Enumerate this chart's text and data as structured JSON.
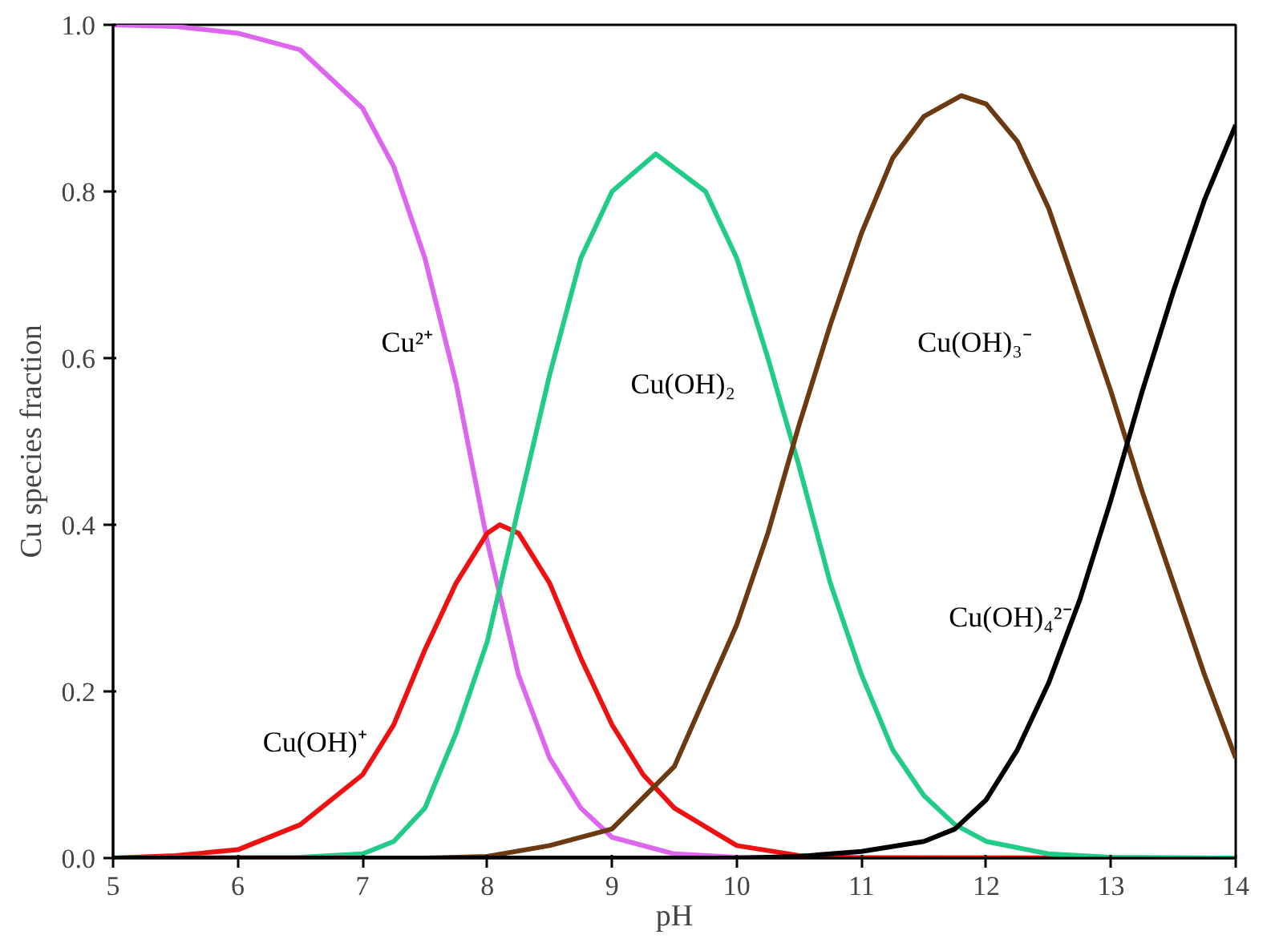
{
  "chart_data": {
    "type": "line",
    "xlabel": "pH",
    "ylabel": "Cu species fraction",
    "xlim": [
      5,
      14
    ],
    "ylim": [
      0,
      1.0
    ],
    "xticks": [
      5,
      6,
      7,
      8,
      9,
      10,
      11,
      12,
      13,
      14
    ],
    "yticks": [
      {
        "value": 0,
        "label": "0.0"
      },
      0.2,
      0.4,
      0.6,
      0.8,
      {
        "value": 1,
        "label": "1.0"
      }
    ],
    "grid": false,
    "legend": false,
    "line_style": "solid",
    "marker": "none",
    "series": [
      {
        "name": "Cu²⁺",
        "color": "#dd66ee",
        "x": [
          5,
          5.5,
          6,
          6.5,
          7,
          7.25,
          7.5,
          7.75,
          8,
          8.25,
          8.5,
          8.75,
          9,
          9.5,
          10,
          14
        ],
        "values": [
          1.0,
          0.998,
          0.99,
          0.97,
          0.9,
          0.83,
          0.72,
          0.57,
          0.38,
          0.22,
          0.12,
          0.06,
          0.025,
          0.005,
          0.001,
          0
        ]
      },
      {
        "name": "Cu(OH)⁺",
        "color": "#ee1111",
        "x": [
          5,
          5.5,
          6,
          6.5,
          7,
          7.25,
          7.5,
          7.75,
          8,
          8.1,
          8.25,
          8.5,
          8.75,
          9,
          9.25,
          9.5,
          10,
          10.5,
          11,
          14
        ],
        "values": [
          0,
          0.003,
          0.01,
          0.04,
          0.1,
          0.16,
          0.25,
          0.33,
          0.39,
          0.4,
          0.39,
          0.33,
          0.24,
          0.16,
          0.1,
          0.06,
          0.015,
          0.003,
          0,
          0
        ]
      },
      {
        "name": "Cu(OH)₂",
        "color": "#22cc88",
        "x": [
          5,
          6.5,
          7,
          7.25,
          7.5,
          7.75,
          8,
          8.25,
          8.5,
          8.75,
          9,
          9.35,
          9.75,
          10,
          10.25,
          10.5,
          10.75,
          11,
          11.25,
          11.5,
          11.75,
          12,
          12.5,
          13,
          14
        ],
        "values": [
          0,
          0.001,
          0.005,
          0.02,
          0.06,
          0.15,
          0.26,
          0.42,
          0.58,
          0.72,
          0.8,
          0.845,
          0.8,
          0.72,
          0.6,
          0.47,
          0.33,
          0.22,
          0.13,
          0.075,
          0.04,
          0.02,
          0.005,
          0.001,
          0
        ]
      },
      {
        "name": "Cu(OH)₃⁻",
        "color": "#6b3a10",
        "x": [
          5,
          7.5,
          8,
          8.5,
          9,
          9.5,
          10,
          10.25,
          10.5,
          10.75,
          11,
          11.25,
          11.5,
          11.8,
          12,
          12.25,
          12.5,
          12.75,
          13,
          13.25,
          13.5,
          13.75,
          14
        ],
        "values": [
          0,
          0,
          0.002,
          0.015,
          0.035,
          0.11,
          0.28,
          0.39,
          0.52,
          0.64,
          0.75,
          0.84,
          0.89,
          0.915,
          0.905,
          0.86,
          0.78,
          0.67,
          0.56,
          0.44,
          0.33,
          0.22,
          0.12
        ]
      },
      {
        "name": "Cu(OH)₄²⁻",
        "color": "#000000",
        "x": [
          5,
          10,
          10.5,
          11,
          11.5,
          11.75,
          12,
          12.25,
          12.5,
          12.75,
          13,
          13.25,
          13.5,
          13.75,
          14
        ],
        "values": [
          0,
          0,
          0.002,
          0.008,
          0.02,
          0.035,
          0.07,
          0.13,
          0.21,
          0.31,
          0.43,
          0.56,
          0.68,
          0.79,
          0.88
        ]
      }
    ]
  }
}
